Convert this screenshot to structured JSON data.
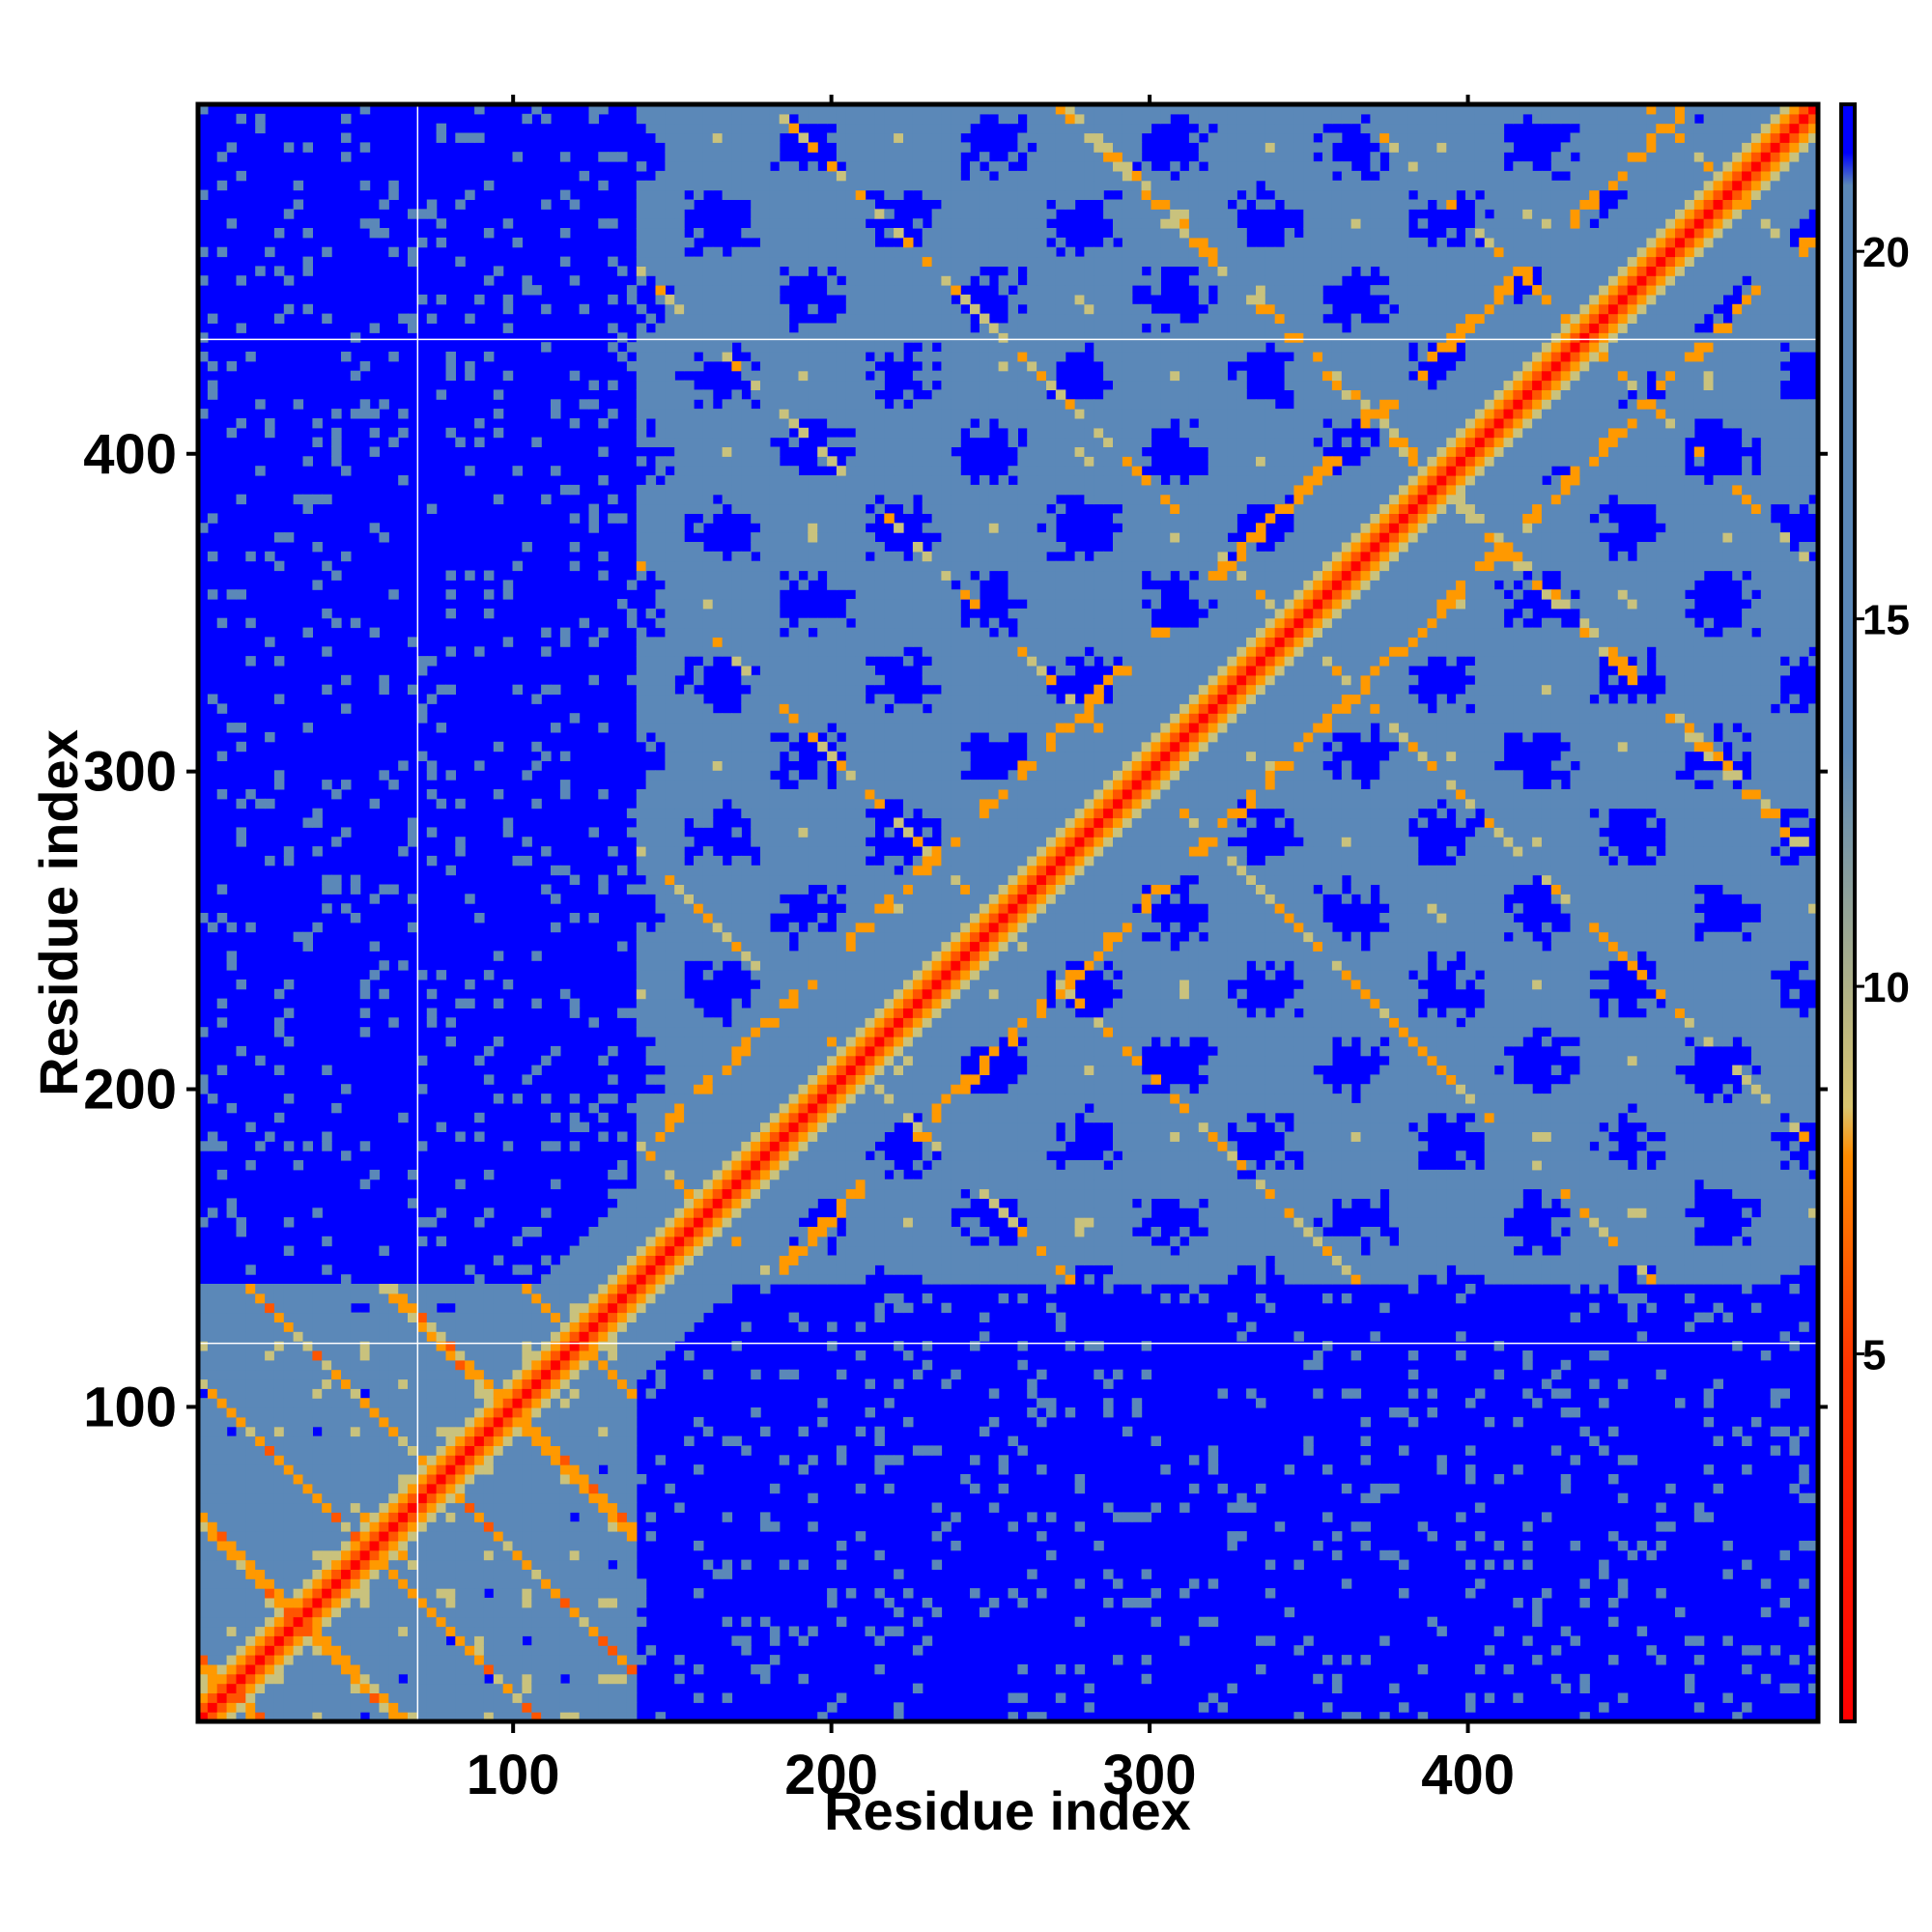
{
  "chart_data": {
    "type": "heatmap",
    "title": "",
    "xlabel": "Residue index",
    "ylabel": "Residue index",
    "xlim": [
      1,
      510
    ],
    "ylim": [
      1,
      510
    ],
    "x_ticks": [
      100,
      200,
      300,
      400
    ],
    "y_ticks": [
      100,
      200,
      300,
      400
    ],
    "colorbar": {
      "ticks": [
        5,
        10,
        15,
        20
      ],
      "range": [
        0,
        22
      ],
      "colors": {
        "low": "#ff0000",
        "mid_low": "#ff8c00",
        "mid": "#e6d27a",
        "high": "#5b88b8",
        "max": "#0000ff"
      }
    },
    "background_value": 22,
    "domains": [
      {
        "start": 1,
        "end": 140
      },
      {
        "start": 140,
        "end": 510
      }
    ],
    "guide_lines": {
      "x": [
        70
      ],
      "y": [
        120,
        436
      ]
    }
  }
}
